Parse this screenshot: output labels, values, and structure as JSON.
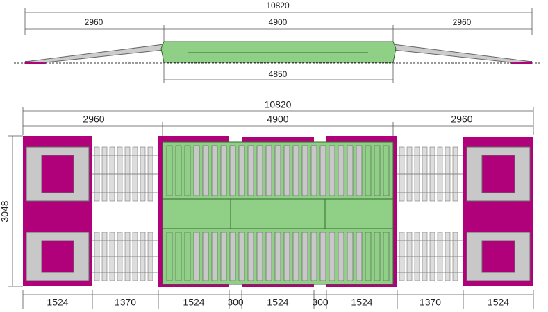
{
  "side_view": {
    "total": "10820",
    "left": "2960",
    "center": "4900",
    "right": "2960",
    "bottom": "4850"
  },
  "plan_view": {
    "total": "10820",
    "left": "2960",
    "center": "4900",
    "right": "2960",
    "height": "3048",
    "segments": [
      "1524",
      "1370",
      "1524",
      "300",
      "1524",
      "300",
      "1524",
      "1370",
      "1524"
    ]
  }
}
